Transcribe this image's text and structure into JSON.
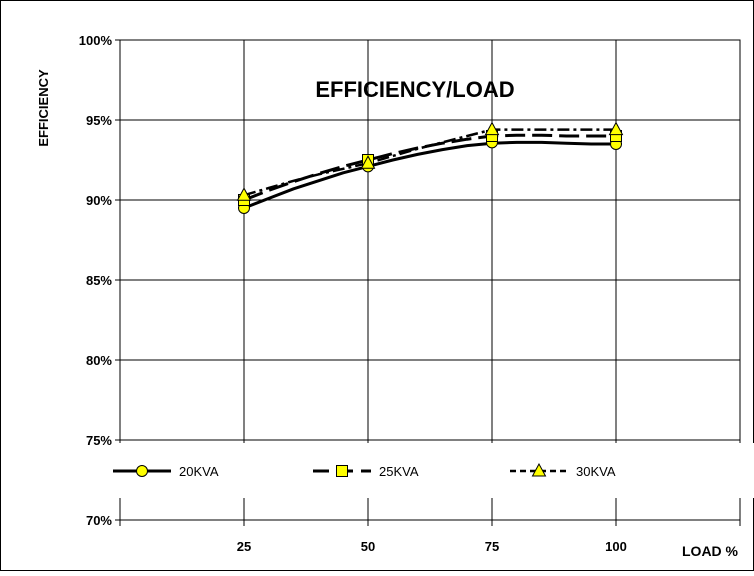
{
  "chart_data": {
    "type": "line",
    "title": "EFFICIENCY/LOAD",
    "xlabel": "LOAD %",
    "ylabel": "EFFICIENCY",
    "x": [
      25,
      50,
      75,
      100
    ],
    "x_tick_labels": [
      "25",
      "50",
      "75",
      "100"
    ],
    "xlim": [
      0,
      125
    ],
    "ylim": [
      70,
      100
    ],
    "y_ticks": [
      70,
      75,
      80,
      85,
      90,
      95,
      100
    ],
    "y_tick_labels": [
      "70%",
      "75%",
      "80%",
      "85%",
      "90%",
      "95%",
      "100%"
    ],
    "grid": true,
    "legend_position": "bottom",
    "series": [
      {
        "name": "20KVA",
        "values": [
          89.5,
          92.1,
          93.6,
          93.5
        ],
        "curve_x": [
          25,
          30,
          35,
          40,
          45,
          50,
          55,
          60,
          65,
          70,
          75,
          80,
          85,
          90,
          95,
          100
        ],
        "curve_y": [
          89.5,
          90.1,
          90.7,
          91.2,
          91.7,
          92.1,
          92.5,
          92.85,
          93.15,
          93.4,
          93.55,
          93.6,
          93.6,
          93.55,
          93.5,
          93.5
        ],
        "line_style": "solid",
        "marker": "circle",
        "color": "#000000",
        "marker_color": "#ffff00"
      },
      {
        "name": "25KVA",
        "values": [
          90.0,
          92.5,
          94.0,
          94.0
        ],
        "curve_x": [
          25,
          30,
          35,
          40,
          45,
          50,
          55,
          60,
          65,
          70,
          75,
          80,
          85,
          90,
          95,
          100
        ],
        "curve_y": [
          90.0,
          90.6,
          91.15,
          91.65,
          92.1,
          92.5,
          92.9,
          93.25,
          93.55,
          93.8,
          94.0,
          94.05,
          94.05,
          94.0,
          94.0,
          94.0
        ],
        "line_style": "long-dash",
        "marker": "square",
        "color": "#000000",
        "marker_color": "#ffff00"
      },
      {
        "name": "30KVA",
        "values": [
          90.3,
          92.3,
          94.4,
          94.4
        ],
        "curve_x": [
          25,
          30,
          35,
          40,
          45,
          50,
          55,
          60,
          65,
          70,
          75,
          80,
          85,
          90,
          95,
          100
        ],
        "curve_y": [
          90.3,
          90.75,
          91.2,
          91.6,
          91.95,
          92.3,
          92.75,
          93.2,
          93.6,
          94.0,
          94.4,
          94.4,
          94.4,
          94.4,
          94.4,
          94.4
        ],
        "line_style": "dash-dot",
        "marker": "triangle",
        "color": "#000000",
        "marker_color": "#ffff00"
      }
    ]
  }
}
